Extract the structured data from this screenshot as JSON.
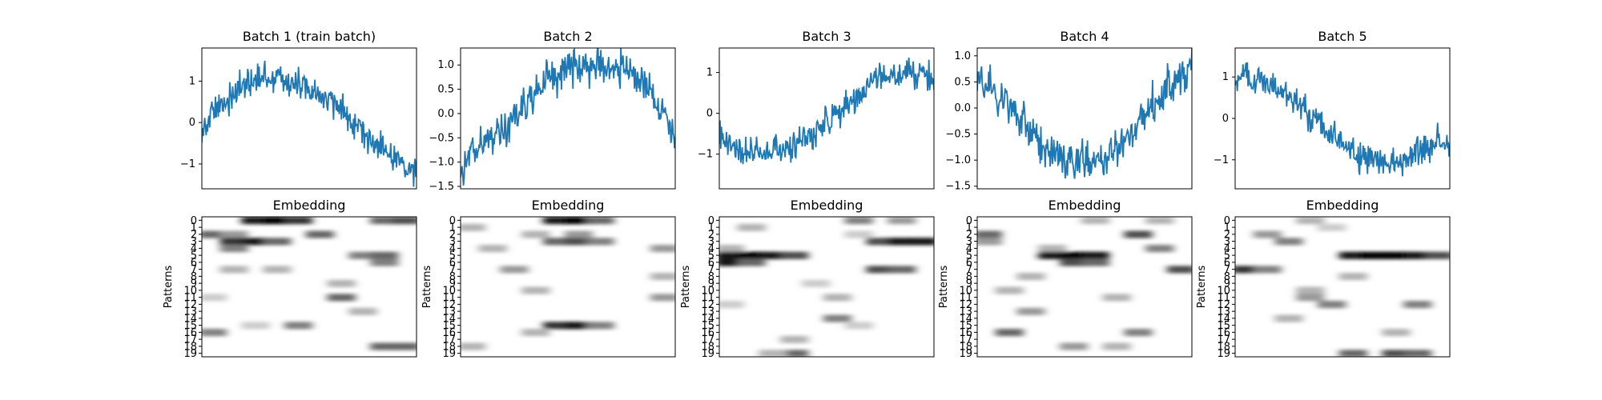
{
  "chart_data": [
    {
      "type": "line",
      "title": "Batch 1 (train batch)",
      "xlabel": "",
      "ylabel": "",
      "ylim": [
        -1.6,
        1.8
      ],
      "yticks": [
        -1,
        0,
        1
      ],
      "ytick_labels": [
        "−1",
        "0",
        "1"
      ],
      "series_color": "#1f77b4",
      "series": [
        {
          "x": [
            0,
            15,
            30,
            45,
            60,
            75,
            90,
            105,
            120,
            135,
            150,
            165,
            180,
            195,
            210,
            225,
            240,
            255,
            270,
            285,
            300
          ],
          "values": [
            -0.2,
            0.2,
            0.5,
            0.7,
            0.9,
            1.0,
            1.1,
            1.1,
            1.0,
            0.9,
            0.8,
            0.6,
            0.5,
            0.3,
            0.1,
            -0.2,
            -0.5,
            -0.7,
            -0.9,
            -1.0,
            -1.15
          ]
        }
      ]
    },
    {
      "type": "line",
      "title": "Batch 2",
      "xlabel": "",
      "ylabel": "",
      "ylim": [
        -1.55,
        1.35
      ],
      "yticks": [
        -1.5,
        -1.0,
        -0.5,
        0.0,
        0.5,
        1.0
      ],
      "ytick_labels": [
        "−1.5",
        "−1.0",
        "−0.5",
        "0.0",
        "0.5",
        "1.0"
      ],
      "series_color": "#1f77b4",
      "series": [
        {
          "x": [
            0,
            15,
            30,
            45,
            60,
            75,
            90,
            105,
            120,
            135,
            150,
            165,
            180,
            195,
            210,
            225,
            240,
            255,
            270,
            285,
            300
          ],
          "values": [
            -1.05,
            -0.8,
            -0.6,
            -0.5,
            -0.3,
            -0.1,
            0.2,
            0.45,
            0.7,
            0.85,
            0.95,
            0.95,
            1.0,
            1.0,
            1.0,
            0.95,
            0.8,
            0.6,
            0.3,
            0.0,
            -0.5
          ]
        }
      ]
    },
    {
      "type": "line",
      "title": "Batch 3",
      "xlabel": "",
      "ylabel": "",
      "ylim": [
        -1.85,
        1.6
      ],
      "yticks": [
        -1,
        0,
        1
      ],
      "ytick_labels": [
        "−1",
        "0",
        "1"
      ],
      "series_color": "#1f77b4",
      "series": [
        {
          "x": [
            0,
            15,
            30,
            45,
            60,
            75,
            90,
            105,
            120,
            135,
            150,
            165,
            180,
            195,
            210,
            225,
            240,
            255,
            270,
            285,
            300
          ],
          "values": [
            -0.5,
            -0.8,
            -0.9,
            -1.0,
            -1.0,
            -1.0,
            -0.9,
            -0.8,
            -0.65,
            -0.45,
            -0.25,
            -0.05,
            0.2,
            0.45,
            0.65,
            0.85,
            0.95,
            1.0,
            1.0,
            0.95,
            0.75
          ]
        }
      ]
    },
    {
      "type": "line",
      "title": "Batch 4",
      "xlabel": "",
      "ylabel": "",
      "ylim": [
        -1.55,
        1.15
      ],
      "yticks": [
        -1.5,
        -1.0,
        -0.5,
        0.0,
        0.5,
        1.0
      ],
      "ytick_labels": [
        "−1.5",
        "−1.0",
        "−0.5",
        "0.0",
        "0.5",
        "1.0"
      ],
      "series_color": "#1f77b4",
      "series": [
        {
          "x": [
            0,
            15,
            30,
            45,
            60,
            75,
            90,
            105,
            120,
            135,
            150,
            165,
            180,
            195,
            210,
            225,
            240,
            255,
            270,
            285,
            300
          ],
          "values": [
            0.55,
            0.4,
            0.2,
            0.0,
            -0.25,
            -0.45,
            -0.65,
            -0.8,
            -0.95,
            -1.0,
            -1.05,
            -1.0,
            -0.9,
            -0.75,
            -0.55,
            -0.3,
            -0.05,
            0.2,
            0.4,
            0.6,
            0.75
          ]
        }
      ]
    },
    {
      "type": "line",
      "title": "Batch 5",
      "xlabel": "",
      "ylabel": "",
      "ylim": [
        -1.7,
        1.7
      ],
      "yticks": [
        -1,
        0,
        1
      ],
      "ytick_labels": [
        "−1",
        "0",
        "1"
      ],
      "series_color": "#1f77b4",
      "series": [
        {
          "x": [
            0,
            15,
            30,
            45,
            60,
            75,
            90,
            105,
            120,
            135,
            150,
            165,
            180,
            195,
            210,
            225,
            240,
            255,
            270,
            285,
            300
          ],
          "values": [
            1.0,
            1.0,
            0.95,
            0.85,
            0.7,
            0.5,
            0.3,
            0.05,
            -0.2,
            -0.45,
            -0.65,
            -0.85,
            -0.95,
            -1.0,
            -1.0,
            -1.0,
            -0.95,
            -0.85,
            -0.7,
            -0.5,
            -0.45
          ]
        }
      ]
    },
    {
      "type": "heatmap",
      "title": "Embedding",
      "xlabel": "",
      "ylabel": "Patterns",
      "yticks": [
        "0",
        "1",
        "2",
        "3",
        "4",
        "5",
        "6",
        "7",
        "8",
        "9",
        "10",
        "11",
        "12",
        "13",
        "14",
        "15",
        "16",
        "17",
        "18",
        "19"
      ],
      "colormap": "Greys",
      "ncols": 10,
      "cells": [
        [
          0,
          2,
          0.9
        ],
        [
          0,
          3,
          1.0
        ],
        [
          0,
          4,
          0.8
        ],
        [
          0,
          8,
          0.6
        ],
        [
          0,
          9,
          0.7
        ],
        [
          2,
          0,
          0.6
        ],
        [
          2,
          1,
          0.4
        ],
        [
          2,
          5,
          0.6
        ],
        [
          3,
          1,
          0.8
        ],
        [
          3,
          2,
          0.9
        ],
        [
          3,
          3,
          0.6
        ],
        [
          4,
          1,
          0.5
        ],
        [
          5,
          7,
          0.5
        ],
        [
          5,
          8,
          0.6
        ],
        [
          6,
          8,
          0.5
        ],
        [
          7,
          1,
          0.3
        ],
        [
          7,
          3,
          0.3
        ],
        [
          9,
          6,
          0.3
        ],
        [
          11,
          0,
          0.2
        ],
        [
          11,
          6,
          0.6
        ],
        [
          13,
          7,
          0.3
        ],
        [
          15,
          2,
          0.2
        ],
        [
          15,
          4,
          0.5
        ],
        [
          16,
          0,
          0.5
        ],
        [
          18,
          8,
          0.6
        ],
        [
          18,
          9,
          0.6
        ]
      ]
    },
    {
      "type": "heatmap",
      "title": "Embedding",
      "xlabel": "",
      "ylabel": "Patterns",
      "yticks": [
        "0",
        "1",
        "2",
        "3",
        "4",
        "5",
        "6",
        "7",
        "8",
        "9",
        "10",
        "11",
        "12",
        "13",
        "14",
        "15",
        "16",
        "17",
        "18",
        "19"
      ],
      "colormap": "Greys",
      "ncols": 10,
      "cells": [
        [
          0,
          4,
          0.9
        ],
        [
          0,
          5,
          1.0
        ],
        [
          0,
          6,
          0.6
        ],
        [
          1,
          0,
          0.3
        ],
        [
          2,
          3,
          0.3
        ],
        [
          2,
          5,
          0.4
        ],
        [
          3,
          4,
          0.6
        ],
        [
          3,
          5,
          0.7
        ],
        [
          3,
          6,
          0.5
        ],
        [
          4,
          1,
          0.3
        ],
        [
          4,
          9,
          0.4
        ],
        [
          7,
          2,
          0.4
        ],
        [
          8,
          9,
          0.3
        ],
        [
          10,
          3,
          0.3
        ],
        [
          11,
          9,
          0.4
        ],
        [
          15,
          4,
          0.8
        ],
        [
          15,
          5,
          0.9
        ],
        [
          15,
          6,
          0.5
        ],
        [
          16,
          3,
          0.3
        ],
        [
          18,
          0,
          0.3
        ]
      ]
    },
    {
      "type": "heatmap",
      "title": "Embedding",
      "xlabel": "",
      "ylabel": "Patterns",
      "yticks": [
        "0",
        "1",
        "2",
        "3",
        "4",
        "5",
        "6",
        "7",
        "8",
        "9",
        "10",
        "11",
        "12",
        "13",
        "14",
        "15",
        "16",
        "17",
        "18",
        "19"
      ],
      "colormap": "Greys",
      "ncols": 10,
      "cells": [
        [
          0,
          6,
          0.5
        ],
        [
          0,
          8,
          0.4
        ],
        [
          1,
          1,
          0.3
        ],
        [
          2,
          6,
          0.2
        ],
        [
          3,
          7,
          0.7
        ],
        [
          3,
          8,
          0.9
        ],
        [
          3,
          9,
          0.9
        ],
        [
          4,
          0,
          0.3
        ],
        [
          5,
          0,
          0.9
        ],
        [
          5,
          1,
          1.0
        ],
        [
          5,
          2,
          0.9
        ],
        [
          5,
          3,
          0.7
        ],
        [
          6,
          0,
          0.9
        ],
        [
          6,
          1,
          0.6
        ],
        [
          7,
          7,
          0.7
        ],
        [
          7,
          8,
          0.6
        ],
        [
          9,
          4,
          0.2
        ],
        [
          11,
          5,
          0.3
        ],
        [
          12,
          0,
          0.2
        ],
        [
          14,
          5,
          0.5
        ],
        [
          15,
          6,
          0.2
        ],
        [
          17,
          3,
          0.3
        ],
        [
          19,
          3,
          0.6
        ],
        [
          19,
          2,
          0.3
        ]
      ]
    },
    {
      "type": "heatmap",
      "title": "Embedding",
      "xlabel": "",
      "ylabel": "Patterns",
      "yticks": [
        "0",
        "1",
        "2",
        "3",
        "4",
        "5",
        "6",
        "7",
        "8",
        "9",
        "10",
        "11",
        "12",
        "13",
        "14",
        "15",
        "16",
        "17",
        "18",
        "19"
      ],
      "colormap": "Greys",
      "ncols": 10,
      "cells": [
        [
          0,
          5,
          0.3
        ],
        [
          0,
          8,
          0.3
        ],
        [
          2,
          0,
          0.6
        ],
        [
          2,
          7,
          0.7
        ],
        [
          3,
          0,
          0.4
        ],
        [
          4,
          3,
          0.3
        ],
        [
          4,
          8,
          0.5
        ],
        [
          5,
          3,
          0.9
        ],
        [
          5,
          4,
          1.0
        ],
        [
          5,
          5,
          0.9
        ],
        [
          6,
          4,
          0.7
        ],
        [
          6,
          5,
          0.6
        ],
        [
          7,
          9,
          0.7
        ],
        [
          8,
          2,
          0.3
        ],
        [
          10,
          1,
          0.3
        ],
        [
          11,
          6,
          0.3
        ],
        [
          13,
          2,
          0.4
        ],
        [
          16,
          1,
          0.6
        ],
        [
          16,
          7,
          0.5
        ],
        [
          18,
          4,
          0.4
        ],
        [
          18,
          6,
          0.3
        ]
      ]
    },
    {
      "type": "heatmap",
      "title": "Embedding",
      "xlabel": "",
      "ylabel": "Patterns",
      "yticks": [
        "0",
        "1",
        "2",
        "3",
        "4",
        "5",
        "6",
        "7",
        "8",
        "9",
        "10",
        "11",
        "12",
        "13",
        "14",
        "15",
        "16",
        "17",
        "18",
        "19"
      ],
      "colormap": "Greys",
      "ncols": 10,
      "cells": [
        [
          0,
          3,
          0.3
        ],
        [
          1,
          4,
          0.2
        ],
        [
          2,
          1,
          0.4
        ],
        [
          3,
          2,
          0.5
        ],
        [
          5,
          5,
          0.9
        ],
        [
          5,
          6,
          1.0
        ],
        [
          5,
          7,
          1.0
        ],
        [
          5,
          8,
          0.9
        ],
        [
          5,
          9,
          0.7
        ],
        [
          7,
          0,
          0.8
        ],
        [
          7,
          1,
          0.5
        ],
        [
          8,
          5,
          0.3
        ],
        [
          10,
          3,
          0.3
        ],
        [
          11,
          3,
          0.4
        ],
        [
          12,
          4,
          0.5
        ],
        [
          12,
          8,
          0.5
        ],
        [
          14,
          2,
          0.3
        ],
        [
          16,
          7,
          0.3
        ],
        [
          19,
          5,
          0.6
        ],
        [
          19,
          7,
          0.7
        ],
        [
          19,
          8,
          0.6
        ]
      ]
    }
  ]
}
